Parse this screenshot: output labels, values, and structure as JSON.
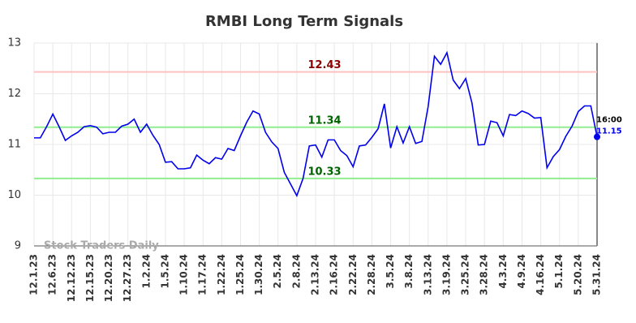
{
  "chart_data": {
    "type": "line",
    "title": "RMBI Long Term Signals",
    "categories": [
      "12.1.23",
      null,
      null,
      "12.6.23",
      null,
      null,
      "12.12.23",
      null,
      null,
      "12.15.23",
      null,
      null,
      "12.20.23",
      null,
      null,
      "12.27.23",
      null,
      null,
      "1.2.24",
      null,
      null,
      "1.5.24",
      null,
      null,
      "1.10.24",
      null,
      null,
      "1.17.24",
      null,
      null,
      "1.22.24",
      null,
      null,
      "1.25.24",
      null,
      null,
      "1.30.24",
      null,
      null,
      "2.5.24",
      null,
      null,
      "2.8.24",
      null,
      null,
      "2.13.24",
      null,
      null,
      "2.16.24",
      null,
      null,
      "2.22.24",
      null,
      null,
      "2.28.24",
      null,
      null,
      "3.5.24",
      null,
      null,
      "3.8.24",
      null,
      null,
      "3.13.24",
      null,
      null,
      "3.19.24",
      null,
      null,
      "3.25.24",
      null,
      null,
      "3.28.24",
      null,
      null,
      "4.3.24",
      null,
      null,
      "4.9.24",
      null,
      null,
      "4.16.24",
      null,
      null,
      "5.1.24",
      null,
      null,
      "5.20.24",
      null,
      null,
      "5.31.24"
    ],
    "values": [
      11.13,
      11.13,
      11.35,
      11.6,
      11.35,
      11.08,
      11.17,
      11.24,
      11.35,
      11.37,
      11.34,
      11.21,
      11.24,
      11.24,
      11.36,
      11.4,
      11.5,
      11.24,
      11.4,
      11.18,
      11.0,
      10.65,
      10.66,
      10.52,
      10.52,
      10.54,
      10.79,
      10.69,
      10.62,
      10.74,
      10.71,
      10.92,
      10.88,
      11.17,
      11.44,
      11.66,
      11.6,
      11.24,
      11.05,
      10.92,
      10.45,
      10.22,
      9.99,
      10.33,
      10.97,
      10.99,
      10.75,
      11.09,
      11.09,
      10.88,
      10.78,
      10.56,
      10.97,
      10.99,
      11.14,
      11.31,
      11.8,
      10.93,
      11.35,
      11.03,
      11.35,
      11.02,
      11.06,
      11.75,
      12.74,
      12.58,
      12.81,
      12.27,
      12.1,
      12.3,
      11.82,
      10.99,
      11.0,
      11.46,
      11.43,
      11.17,
      11.59,
      11.57,
      11.66,
      11.61,
      11.52,
      11.53,
      10.54,
      10.76,
      10.9,
      11.16,
      11.36,
      11.65,
      11.76,
      11.76,
      11.15
    ],
    "color": "#0000ee",
    "ylim": [
      9,
      13
    ],
    "yticks": [
      9,
      10,
      11,
      12,
      13
    ],
    "grid": true,
    "hlines": [
      {
        "value": 12.43,
        "color": "#ffc0c0",
        "label_color": "#8b0000"
      },
      {
        "value": 11.34,
        "color": "#90ee90",
        "label_color": "#006400"
      },
      {
        "value": 10.33,
        "color": "#90ee90",
        "label_color": "#006400"
      }
    ],
    "last_label": "16:00",
    "watermark": "Stock Traders Daily"
  }
}
